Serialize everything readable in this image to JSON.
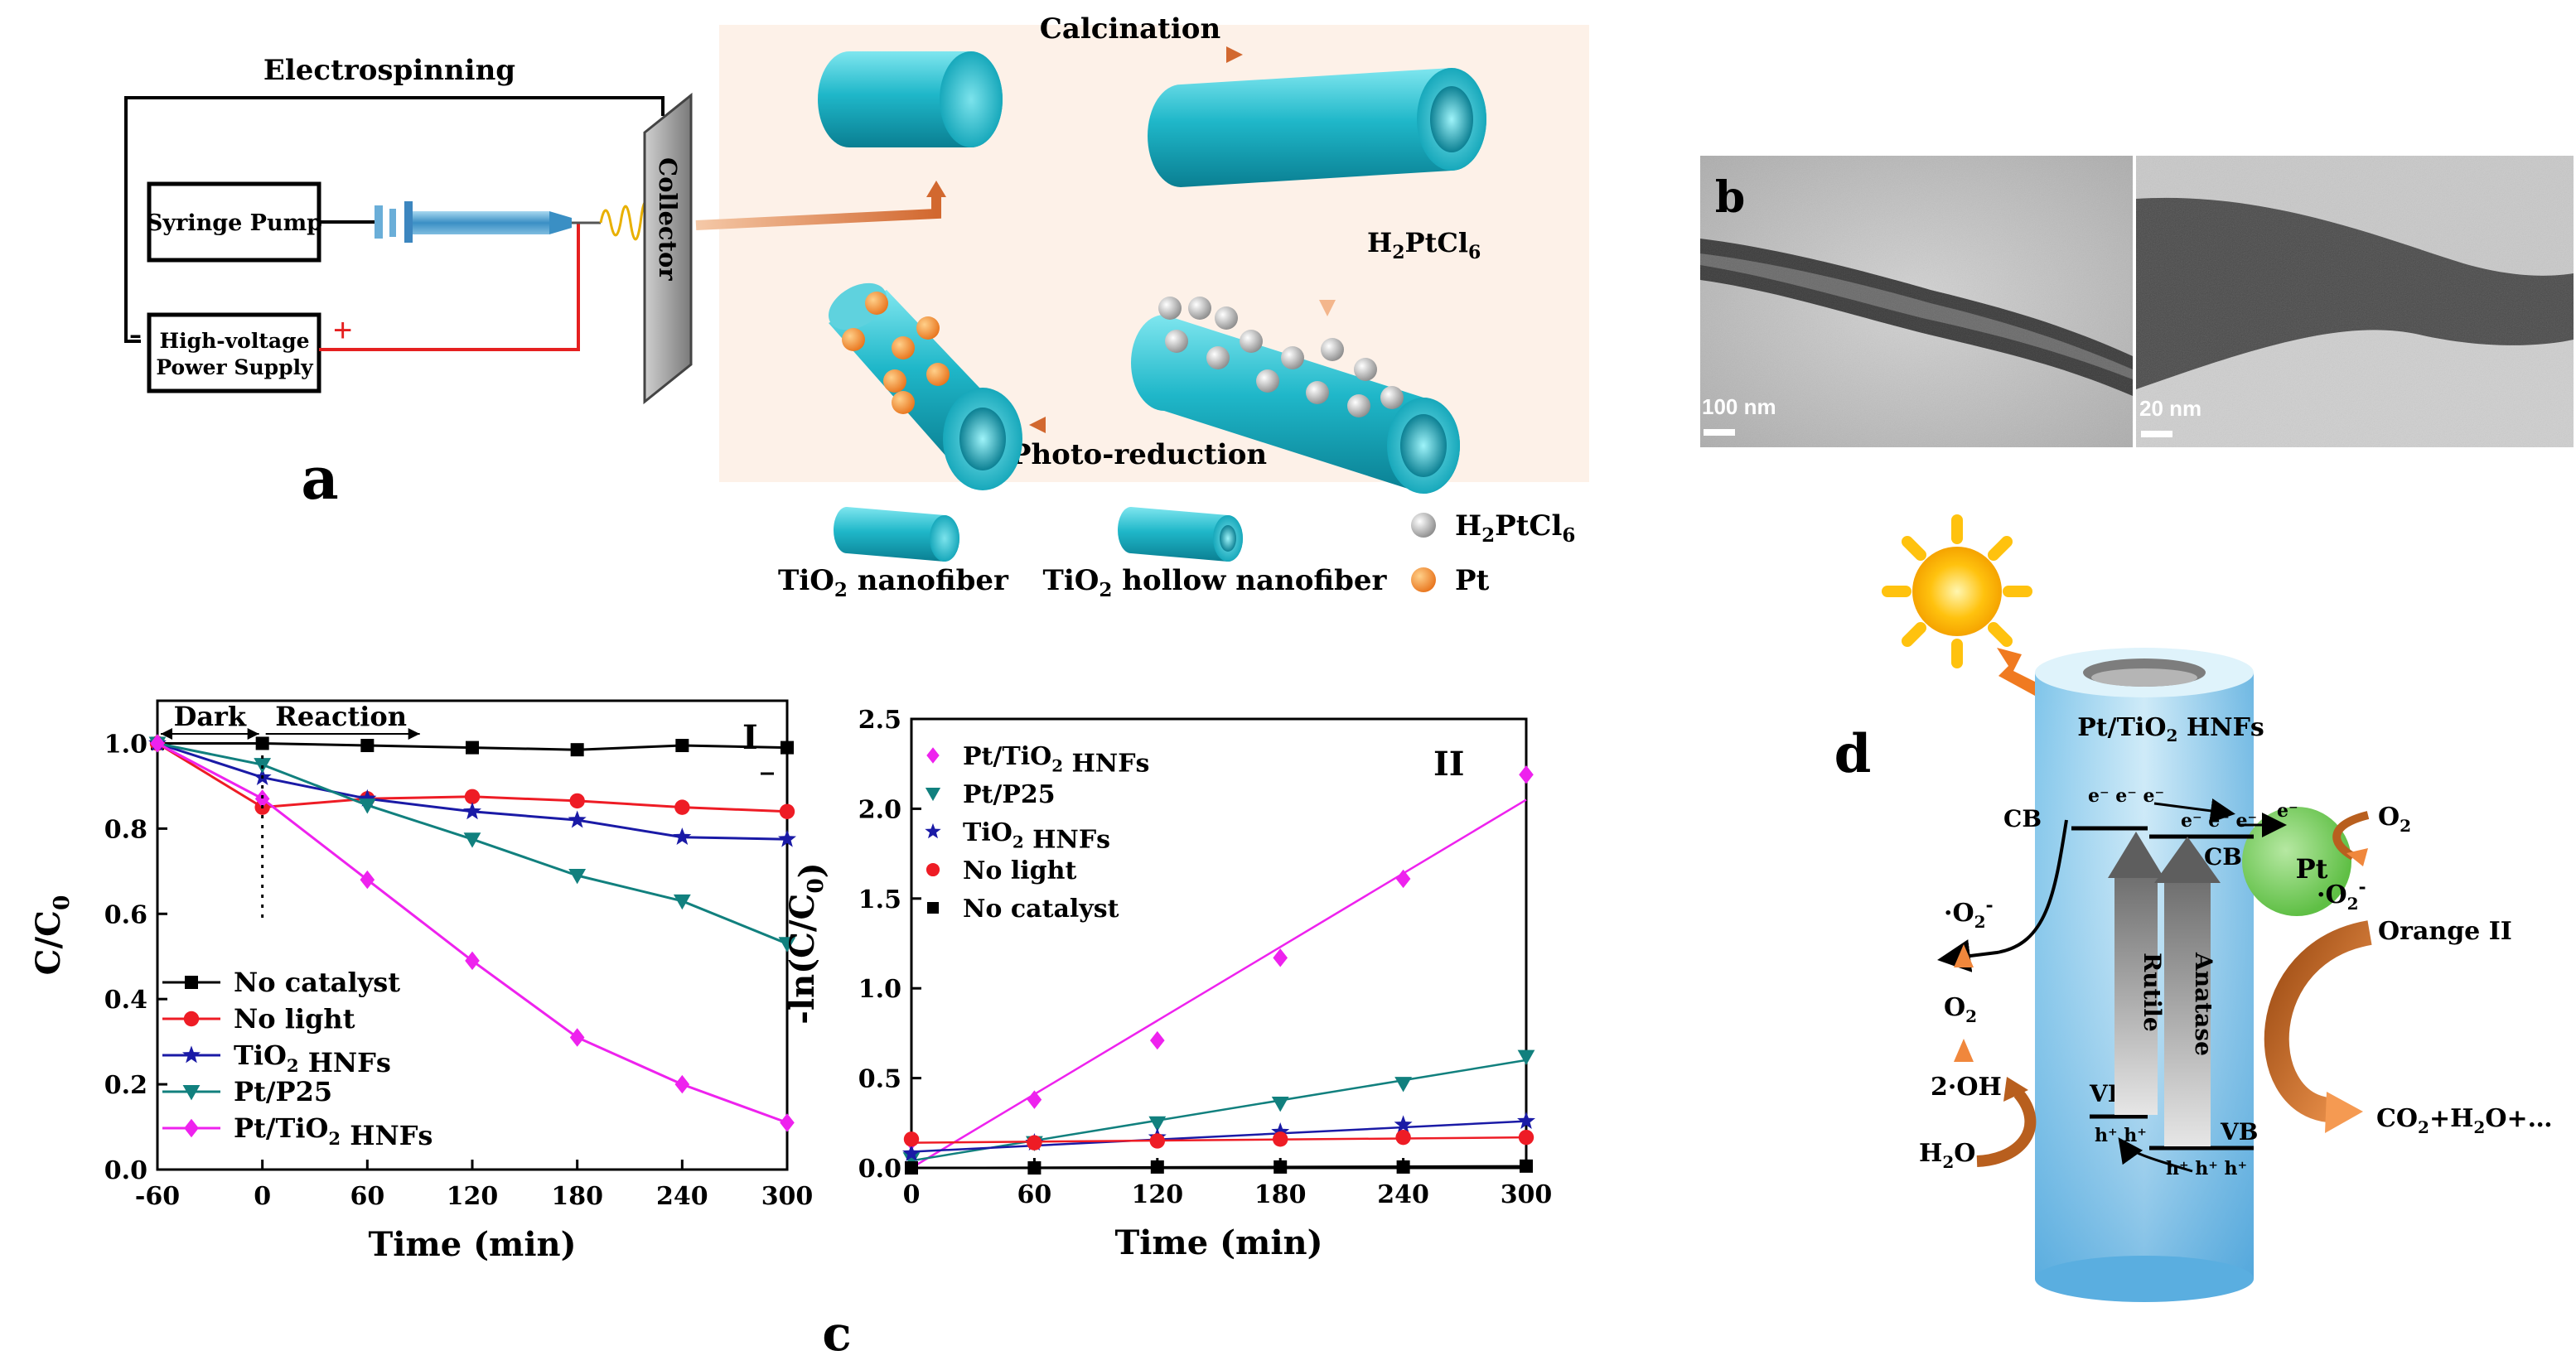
{
  "panel_a": {
    "label": "a",
    "electrospinning_title": "Electrospinning",
    "syringe_pump": "Syringe Pump",
    "hv_line1": "High-voltage",
    "hv_line2": "Power Supply",
    "collector": "Collector",
    "plus": "+",
    "minus": "–",
    "calcination": "Calcination",
    "h2ptcl6_step": "H2PtCl6",
    "photo_reduction": "Photo-reduction",
    "legend": {
      "nanofiber": "TiO2 nanofiber",
      "hollow": "TiO2 hollow nanofiber",
      "h2ptcl6": "H2PtCl6",
      "pt": "Pt"
    }
  },
  "panel_b": {
    "label": "b",
    "left_scale": "100 nm",
    "right_scale": "20 nm"
  },
  "panel_c": {
    "label": "c"
  },
  "panel_d": {
    "label": "d",
    "catalyst": "Pt/TiO2 HNFs",
    "cb": "CB",
    "vb": "VB",
    "pt": "Pt",
    "rutile": "Rutile",
    "anatase": "Anatase",
    "electrons_rutile": "e⁻ e⁻ e⁻",
    "electrons_anatase": "e⁻ e⁻ e⁻",
    "electron_pt": "e⁻",
    "holes_rutile": "h⁺ h⁺",
    "holes_anatase": "h⁺ h⁺ h⁺",
    "o2_right": "O2",
    "superoxide_right": "·O2⁻",
    "orange_ii": "Orange II",
    "products": "CO2+H2O+…",
    "superoxide_left": "·O2⁻",
    "o2_left": "O2",
    "hydroxyl": "2·OH",
    "water": "H2O"
  },
  "chart_data": [
    {
      "type": "line",
      "panel": "I",
      "xlabel": "Time (min)",
      "ylabel": "C/C0",
      "xlim": [
        -60,
        300
      ],
      "ylim": [
        0,
        1.1
      ],
      "xticks": [
        -60,
        0,
        60,
        120,
        180,
        240,
        300
      ],
      "yticks": [
        0.0,
        0.2,
        0.4,
        0.6,
        0.8,
        1.0
      ],
      "phase_labels": [
        "Dark",
        "Reaction"
      ],
      "x": [
        -60,
        0,
        60,
        120,
        180,
        240,
        300
      ],
      "series": [
        {
          "name": "No catalyst",
          "color": "#000000",
          "marker": "square",
          "values": [
            1.0,
            1.0,
            0.995,
            0.99,
            0.985,
            0.995,
            0.99
          ]
        },
        {
          "name": "No light",
          "color": "#ee1c25",
          "marker": "circle",
          "values": [
            1.0,
            0.85,
            0.87,
            0.875,
            0.865,
            0.85,
            0.84
          ]
        },
        {
          "name": "TiO2 HNFs",
          "color": "#1a1aa6",
          "marker": "star",
          "values": [
            1.0,
            0.92,
            0.87,
            0.84,
            0.82,
            0.78,
            0.775
          ]
        },
        {
          "name": "Pt/P25",
          "color": "#11807e",
          "marker": "triangle-down",
          "values": [
            1.0,
            0.95,
            0.855,
            0.775,
            0.69,
            0.63,
            0.53
          ]
        },
        {
          "name": "Pt/TiO2 HNFs",
          "color": "#ee22ee",
          "marker": "diamond",
          "values": [
            1.0,
            0.87,
            0.68,
            0.49,
            0.31,
            0.2,
            0.11
          ]
        }
      ]
    },
    {
      "type": "scatter",
      "panel": "II",
      "xlabel": "Time (min)",
      "ylabel": "-ln(C/C0)",
      "xlim": [
        0,
        300
      ],
      "ylim": [
        0,
        2.5
      ],
      "xticks": [
        0,
        60,
        120,
        180,
        240,
        300
      ],
      "yticks": [
        0.0,
        0.5,
        1.0,
        1.5,
        2.0,
        2.5
      ],
      "x": [
        0,
        60,
        120,
        180,
        240,
        300
      ],
      "series": [
        {
          "name": "Pt/TiO2 HNFs",
          "color": "#ee22ee",
          "marker": "diamond",
          "values": [
            0.15,
            0.38,
            0.71,
            1.17,
            1.61,
            2.19
          ],
          "fit": [
            0.0,
            2.05
          ]
        },
        {
          "name": "Pt/P25",
          "color": "#11807e",
          "marker": "triangle-down",
          "values": [
            0.05,
            0.14,
            0.25,
            0.36,
            0.47,
            0.62
          ],
          "fit": [
            0.04,
            0.6
          ]
        },
        {
          "name": "TiO2 HNFs",
          "color": "#1a1aa6",
          "marker": "star",
          "values": [
            0.08,
            0.14,
            0.17,
            0.2,
            0.24,
            0.26
          ],
          "fit": [
            0.09,
            0.26
          ]
        },
        {
          "name": "No light",
          "color": "#ee1c25",
          "marker": "circle",
          "values": [
            0.16,
            0.14,
            0.15,
            0.16,
            0.17,
            0.17
          ],
          "fit": [
            0.14,
            0.17
          ]
        },
        {
          "name": "No catalyst",
          "color": "#000000",
          "marker": "square",
          "values": [
            0.0,
            0.0,
            0.005,
            0.005,
            0.005,
            0.01
          ],
          "fit": [
            0.0,
            0.01
          ]
        }
      ]
    }
  ]
}
